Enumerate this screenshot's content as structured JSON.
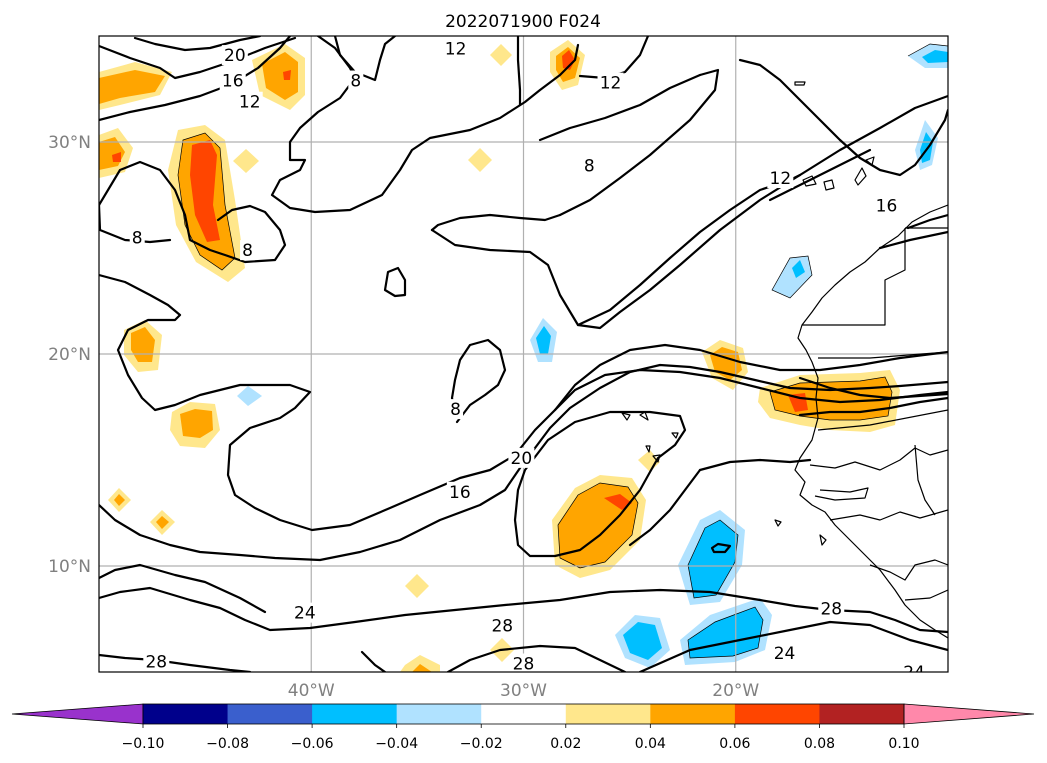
{
  "chart_data": {
    "type": "heatmap",
    "title": "2022071900 F024",
    "map": {
      "lon_range": [
        -50,
        -10
      ],
      "lat_range": [
        5,
        35
      ],
      "lon_ticks": [
        {
          "value": -40,
          "label": "40°W"
        },
        {
          "value": -30,
          "label": "30°W"
        },
        {
          "value": -20,
          "label": "20°W"
        }
      ],
      "lat_ticks": [
        {
          "value": 10,
          "label": "10°N"
        },
        {
          "value": 20,
          "label": "20°N"
        },
        {
          "value": 30,
          "label": "30°N"
        }
      ],
      "grid": true
    },
    "colorbar": {
      "orientation": "horizontal",
      "extend": "both",
      "bounds": [
        -0.1,
        -0.08,
        -0.06,
        -0.04,
        -0.02,
        0.02,
        0.04,
        0.06,
        0.08,
        0.1
      ],
      "tick_labels": [
        "−0.10",
        "−0.08",
        "−0.06",
        "−0.04",
        "−0.02",
        "0.02",
        "0.04",
        "0.06",
        "0.08",
        "0.10"
      ],
      "colors": [
        "#9932cc",
        "#00008b",
        "#3a5fcd",
        "#00bfff",
        "#b0e2ff",
        "#ffffff",
        "#ffe78c",
        "#ffa500",
        "#ff4500",
        "#b22222",
        "#ff88aa"
      ]
    },
    "contour_labels": [
      {
        "text": "20",
        "lon": -43.6,
        "lat": 34.1
      },
      {
        "text": "16",
        "lon": -43.7,
        "lat": 32.9
      },
      {
        "text": "12",
        "lon": -42.9,
        "lat": 31.9
      },
      {
        "text": "8",
        "lon": -37.9,
        "lat": 32.9
      },
      {
        "text": "12",
        "lon": -33.2,
        "lat": 34.4
      },
      {
        "text": "12",
        "lon": -25.9,
        "lat": 32.8
      },
      {
        "text": "8",
        "lon": -26.9,
        "lat": 28.9
      },
      {
        "text": "12",
        "lon": -17.9,
        "lat": 28.3
      },
      {
        "text": "16",
        "lon": -12.9,
        "lat": 27.0
      },
      {
        "text": "8",
        "lon": -48.2,
        "lat": 25.5
      },
      {
        "text": "8",
        "lon": -43.0,
        "lat": 24.9
      },
      {
        "text": "8",
        "lon": -33.2,
        "lat": 17.4
      },
      {
        "text": "20",
        "lon": -30.1,
        "lat": 15.1
      },
      {
        "text": "16",
        "lon": -33.0,
        "lat": 13.5
      },
      {
        "text": "24",
        "lon": -40.3,
        "lat": 7.8
      },
      {
        "text": "28",
        "lon": -31.0,
        "lat": 7.2
      },
      {
        "text": "28",
        "lon": -30.0,
        "lat": 5.4
      },
      {
        "text": "28",
        "lon": -47.3,
        "lat": 5.5
      },
      {
        "text": "28",
        "lon": -15.5,
        "lat": 8.0
      },
      {
        "text": "24",
        "lon": -17.7,
        "lat": 5.9
      },
      {
        "text": "24",
        "lon": -11.6,
        "lat": 5.0
      }
    ]
  }
}
